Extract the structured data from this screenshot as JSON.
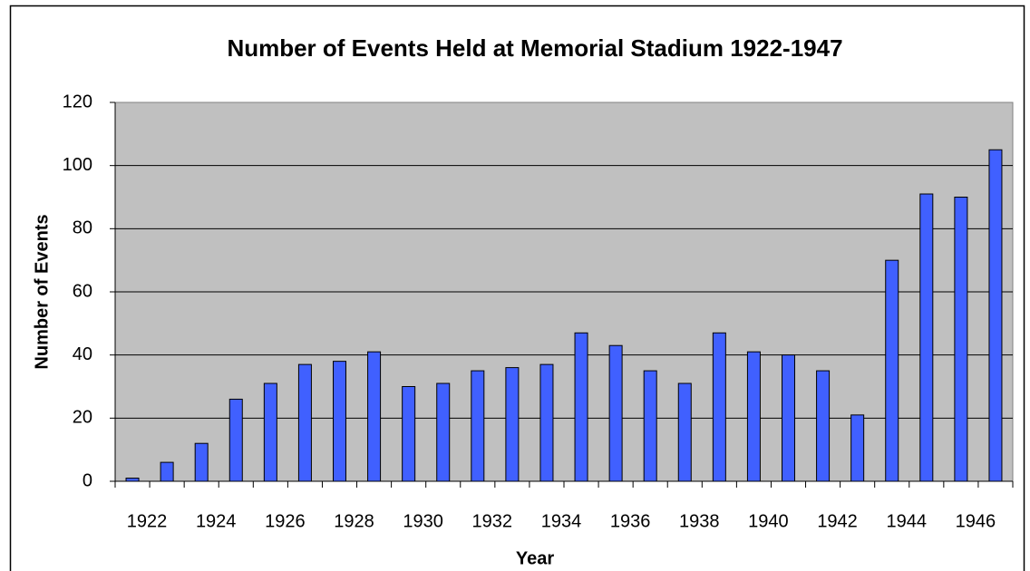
{
  "chart_data": {
    "type": "bar",
    "title": "Number of Events Held at Memorial Stadium 1922-1947",
    "x_label": "Year",
    "y_label": "Number of Events",
    "categories": [
      "1922",
      null,
      "1924",
      null,
      "1926",
      null,
      "1928",
      null,
      "1930",
      null,
      "1932",
      null,
      "1934",
      null,
      "1936",
      null,
      "1938",
      null,
      "1940",
      null,
      "1942",
      null,
      "1944",
      null,
      "1946",
      null
    ],
    "values": [
      1,
      6,
      12,
      26,
      31,
      37,
      38,
      41,
      30,
      31,
      35,
      36,
      37,
      47,
      43,
      35,
      31,
      47,
      41,
      40,
      35,
      21,
      70,
      91,
      90,
      105
    ],
    "color": "#4060ff",
    "ylim": [
      0,
      120
    ],
    "yticks": [
      0,
      20,
      40,
      60,
      80,
      100,
      120
    ],
    "grid": true
  }
}
